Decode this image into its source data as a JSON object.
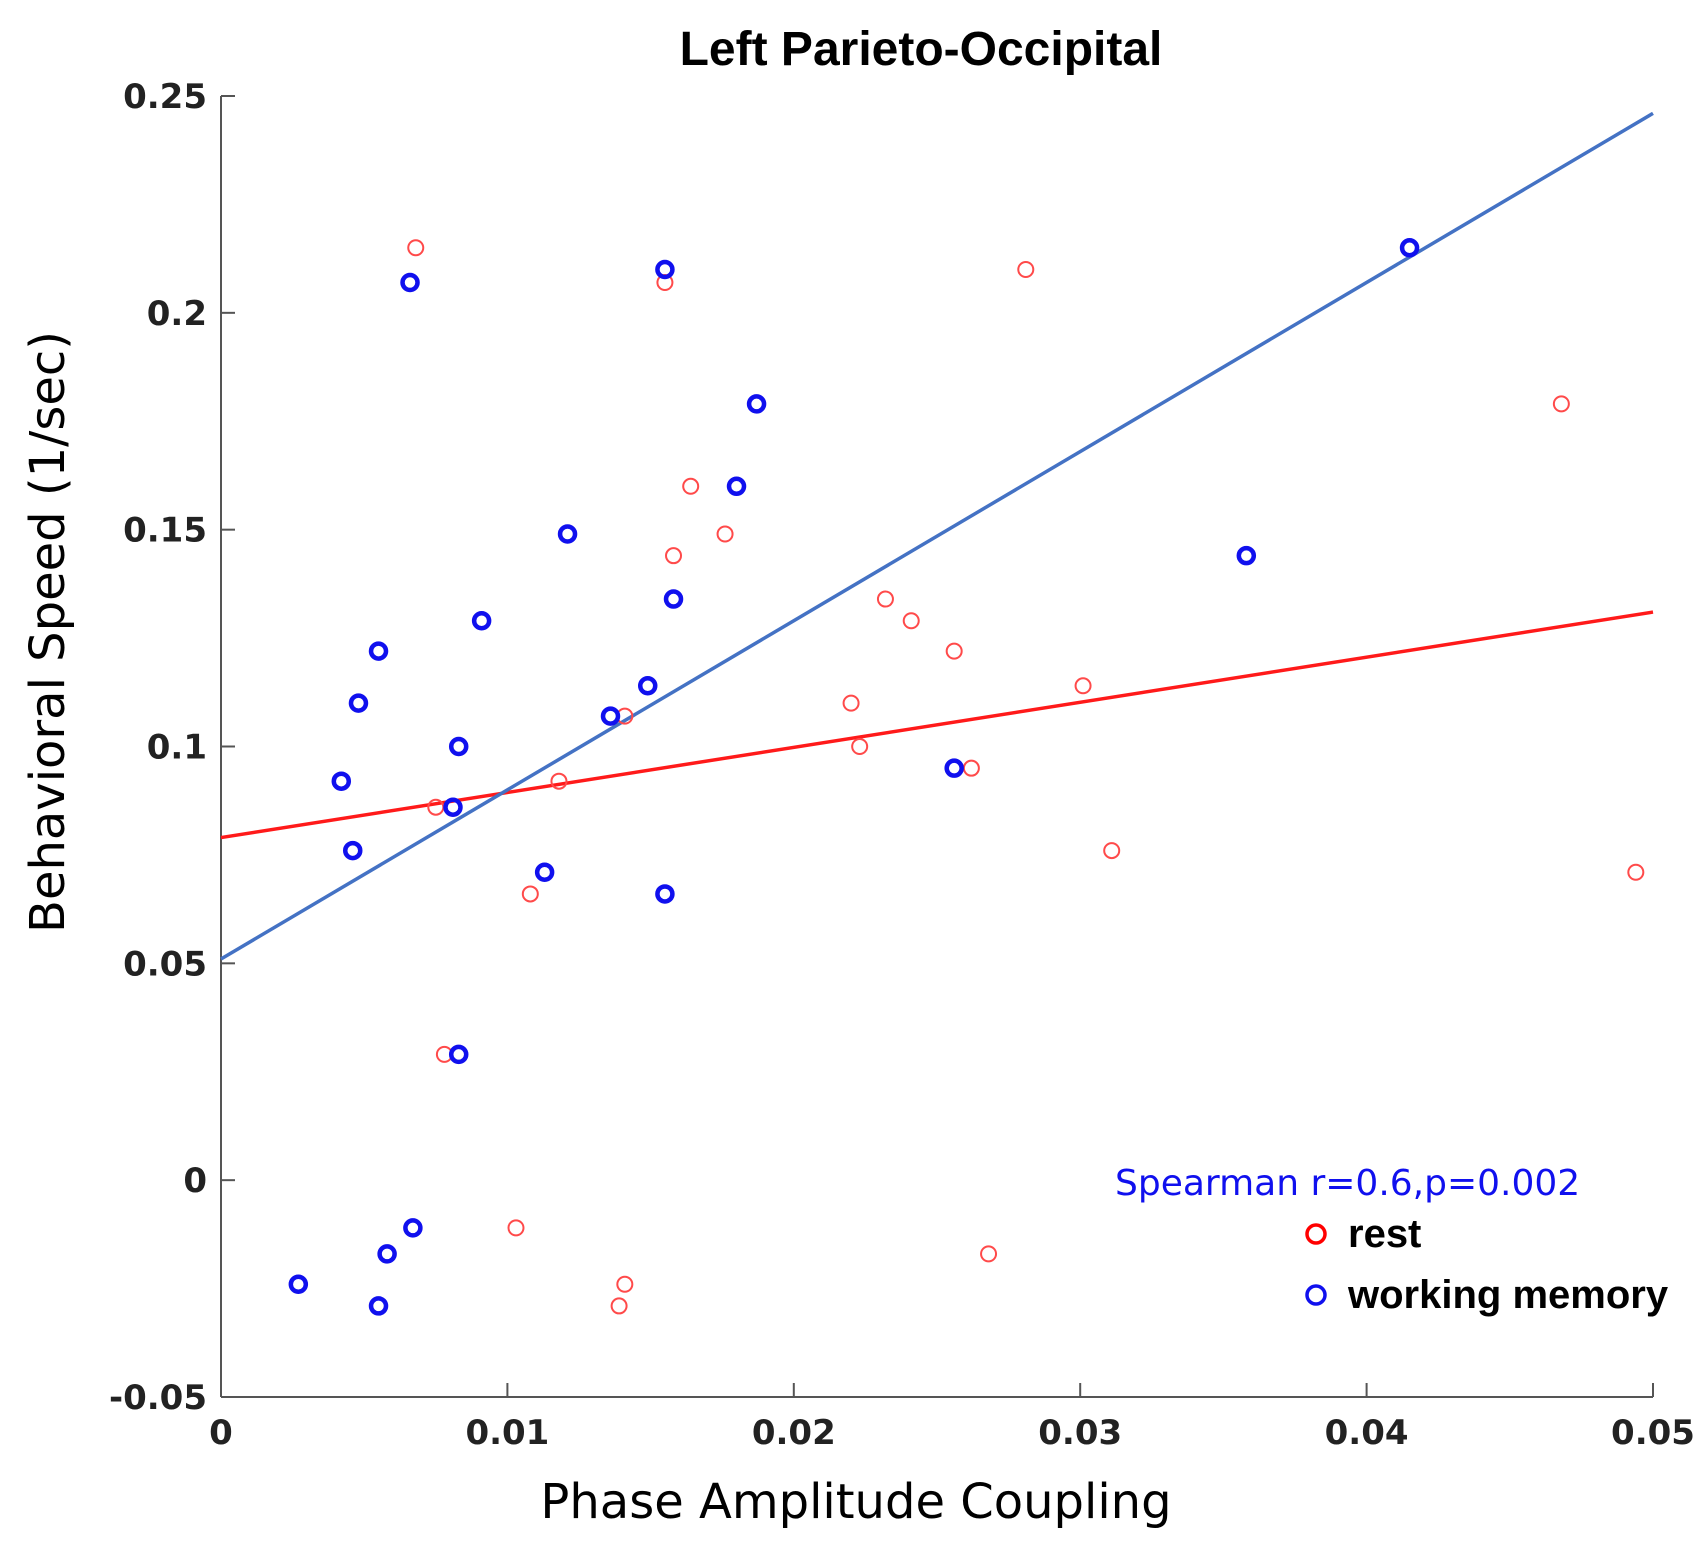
{
  "chart_data": {
    "type": "scatter",
    "title": "Left Parieto-Occipital",
    "xlabel": "Phase Amplitude Coupling",
    "ylabel": "Behavioral Speed (1/sec)",
    "xlim": [
      0,
      0.05
    ],
    "ylim": [
      -0.05,
      0.25
    ],
    "xticks": [
      "0",
      "0.01",
      "0.02",
      "0.03",
      "0.04",
      "0.05"
    ],
    "yticks": [
      "-0.05",
      "0",
      "0.05",
      "0.1",
      "0.15",
      "0.2",
      "0.25"
    ],
    "annotation": "Spearman r=0.6,p=0.002",
    "legend_position": "bottom-right",
    "series": [
      {
        "name": "rest",
        "color": "#ff4a4a",
        "marker": "open-circle",
        "x": [
          0.0068,
          0.0155,
          0.0164,
          0.0176,
          0.0158,
          0.0281,
          0.0468,
          0.0232,
          0.0241,
          0.0256,
          0.022,
          0.0301,
          0.0223,
          0.0141,
          0.0118,
          0.0075,
          0.0262,
          0.0108,
          0.0311,
          0.0494,
          0.0078,
          0.0103,
          0.0141,
          0.0139,
          0.0268
        ],
        "y": [
          0.215,
          0.207,
          0.16,
          0.149,
          0.144,
          0.21,
          0.179,
          0.134,
          0.129,
          0.122,
          0.11,
          0.114,
          0.1,
          0.107,
          0.092,
          0.086,
          0.095,
          0.066,
          0.076,
          0.071,
          0.029,
          -0.011,
          -0.024,
          -0.029,
          -0.017
        ]
      },
      {
        "name": "working memory",
        "color": "#1010ee",
        "marker": "open-circle",
        "x": [
          0.0066,
          0.0155,
          0.0187,
          0.018,
          0.0121,
          0.0158,
          0.0091,
          0.0055,
          0.0048,
          0.0149,
          0.0136,
          0.0083,
          0.0042,
          0.0081,
          0.0046,
          0.0113,
          0.0155,
          0.0256,
          0.0358,
          0.0415,
          0.0083,
          0.0067,
          0.0058,
          0.0027,
          0.0055
        ],
        "y": [
          0.207,
          0.21,
          0.179,
          0.16,
          0.149,
          0.134,
          0.129,
          0.122,
          0.11,
          0.114,
          0.107,
          0.1,
          0.092,
          0.086,
          0.076,
          0.071,
          0.066,
          0.095,
          0.144,
          0.215,
          0.029,
          -0.011,
          -0.017,
          -0.024,
          -0.029
        ]
      }
    ],
    "fit_lines": [
      {
        "name": "rest fit",
        "color": "#ff1a1a",
        "x": [
          0,
          0.05
        ],
        "y": [
          0.079,
          0.131
        ]
      },
      {
        "name": "working memory fit",
        "color": "#4472c4",
        "x": [
          0,
          0.05
        ],
        "y": [
          0.051,
          0.246
        ]
      }
    ]
  }
}
